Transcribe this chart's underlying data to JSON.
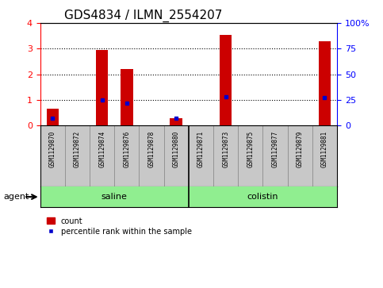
{
  "title": "GDS4834 / ILMN_2554207",
  "samples": [
    "GSM1129870",
    "GSM1129872",
    "GSM1129874",
    "GSM1129876",
    "GSM1129878",
    "GSM1129880",
    "GSM1129871",
    "GSM1129873",
    "GSM1129875",
    "GSM1129877",
    "GSM1129879",
    "GSM1129881"
  ],
  "counts": [
    0.65,
    0.0,
    2.95,
    2.2,
    0.0,
    0.3,
    0.0,
    3.55,
    0.0,
    0.0,
    0.0,
    3.3
  ],
  "percentiles": [
    7.0,
    0.0,
    25.0,
    22.0,
    0.0,
    7.0,
    0.0,
    28.0,
    0.0,
    0.0,
    0.0,
    27.0
  ],
  "groups": [
    {
      "label": "saline",
      "start": 0,
      "end": 6,
      "color": "#90EE90"
    },
    {
      "label": "colistin",
      "start": 6,
      "end": 12,
      "color": "#90EE90"
    }
  ],
  "ylim_left": [
    0,
    4
  ],
  "ylim_right": [
    0,
    100
  ],
  "yticks_left": [
    0,
    1,
    2,
    3,
    4
  ],
  "yticks_right": [
    0,
    25,
    50,
    75,
    100
  ],
  "ytick_labels_right": [
    "0",
    "25",
    "50",
    "75",
    "100%"
  ],
  "bar_color": "#CC0000",
  "percentile_color": "#0000CC",
  "bg_color": "#C8C8C8",
  "agent_label": "agent",
  "legend_count": "count",
  "legend_percentile": "percentile rank within the sample",
  "title_fontsize": 11,
  "tick_fontsize": 8,
  "bar_width": 0.5,
  "dotted_lines": [
    1,
    2,
    3
  ],
  "n_saline": 6,
  "n_colistin": 6
}
